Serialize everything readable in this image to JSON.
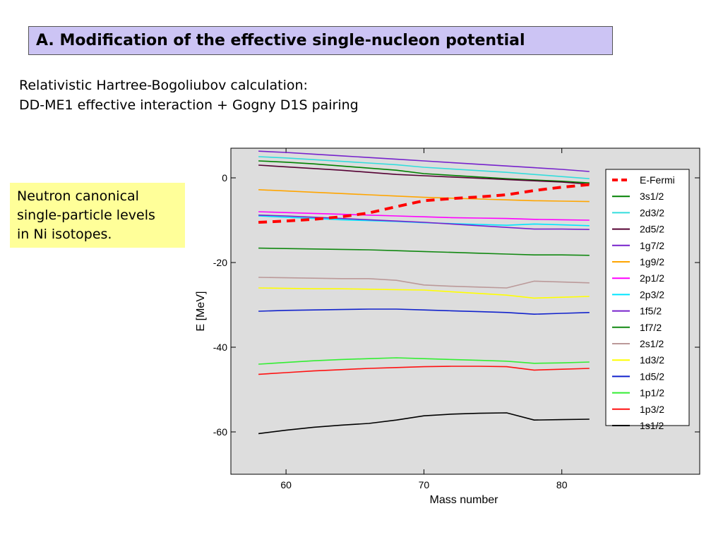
{
  "header": {
    "title": "A. Modification of the effective single-nucleon potential"
  },
  "subtitle": {
    "line1": "Relativistic Hartree-Bogoliubov calculation:",
    "line2": "DD-ME1 effective interaction + Gogny D1S pairing"
  },
  "note": {
    "lines": [
      "Neutron canonical",
      "single-particle levels",
      "in Ni isotopes."
    ]
  },
  "colors": {
    "title_bg": "#ccc4f4",
    "note_bg": "#ffff99",
    "plot_bg": "#dddddd"
  },
  "chart_data": {
    "type": "line",
    "title": "",
    "xlabel": "Mass number",
    "ylabel": "E [MeV]",
    "xlim": [
      56,
      90
    ],
    "ylim": [
      -70,
      7
    ],
    "xticks": [
      60,
      70,
      80
    ],
    "yticks": [
      0,
      -20,
      -40,
      -60
    ],
    "grid": false,
    "legend": "top-right",
    "x": [
      58,
      60,
      62,
      64,
      66,
      68,
      70,
      72,
      74,
      76,
      78,
      80,
      82
    ],
    "series": [
      {
        "name": "E-Fermi",
        "color": "#ff0000",
        "dashed": true,
        "values": [
          -10.5,
          -10.2,
          -9.8,
          -9.2,
          -8.3,
          -6.8,
          -5.4,
          -4.9,
          -4.5,
          -4.0,
          -3.0,
          -2.2,
          -1.6
        ]
      },
      {
        "name": "3s1/2",
        "color": "#008000",
        "values": [
          4.0,
          3.7,
          3.3,
          2.8,
          2.3,
          1.8,
          1.0,
          0.6,
          0.2,
          -0.2,
          -0.5,
          -0.8,
          -1.2
        ]
      },
      {
        "name": "2d3/2",
        "color": "#33dddd",
        "values": [
          5.0,
          4.7,
          4.3,
          3.9,
          3.5,
          3.1,
          2.5,
          2.1,
          1.7,
          1.3,
          0.8,
          0.3,
          -0.2
        ]
      },
      {
        "name": "2d5/2",
        "color": "#550033",
        "values": [
          3.0,
          2.6,
          2.2,
          1.8,
          1.3,
          0.8,
          0.5,
          0.2,
          -0.1,
          -0.4,
          -0.7,
          -1.0,
          -1.5
        ]
      },
      {
        "name": "1g7/2",
        "color": "#7722cc",
        "values": [
          6.3,
          6.0,
          5.6,
          5.2,
          4.8,
          4.4,
          4.0,
          3.6,
          3.2,
          2.8,
          2.4,
          2.0,
          1.5
        ]
      },
      {
        "name": "1g9/2",
        "color": "#ffa500",
        "values": [
          -2.8,
          -3.1,
          -3.4,
          -3.7,
          -4.0,
          -4.3,
          -4.6,
          -4.8,
          -5.0,
          -5.2,
          -5.4,
          -5.5,
          -5.6
        ]
      },
      {
        "name": "2p1/2",
        "color": "#ff00ff",
        "values": [
          -8.0,
          -8.2,
          -8.4,
          -8.6,
          -8.8,
          -9.0,
          -9.2,
          -9.4,
          -9.5,
          -9.6,
          -9.8,
          -9.9,
          -10.0
        ]
      },
      {
        "name": "2p3/2",
        "color": "#00e5ff",
        "values": [
          -9.0,
          -9.3,
          -9.6,
          -9.9,
          -10.1,
          -10.3,
          -10.6,
          -10.8,
          -11.0,
          -11.2,
          -10.9,
          -11.1,
          -11.3
        ]
      },
      {
        "name": "1f5/2",
        "color": "#7722cc",
        "values": [
          -8.8,
          -9.0,
          -9.3,
          -9.6,
          -9.9,
          -10.2,
          -10.5,
          -10.9,
          -11.3,
          -11.7,
          -12.1,
          -12.1,
          -12.2
        ]
      },
      {
        "name": "1f7/2",
        "color": "#118811",
        "values": [
          -16.6,
          -16.7,
          -16.8,
          -16.9,
          -17.0,
          -17.2,
          -17.4,
          -17.6,
          -17.8,
          -18.0,
          -18.2,
          -18.2,
          -18.3
        ]
      },
      {
        "name": "2s1/2",
        "color": "#bb9999",
        "values": [
          -23.5,
          -23.6,
          -23.7,
          -23.8,
          -23.8,
          -24.2,
          -25.3,
          -25.6,
          -25.8,
          -26.0,
          -24.4,
          -24.6,
          -24.8
        ]
      },
      {
        "name": "1d3/2",
        "color": "#ffff00",
        "values": [
          -26.0,
          -26.1,
          -26.2,
          -26.2,
          -26.3,
          -26.4,
          -26.5,
          -26.9,
          -27.3,
          -27.7,
          -28.4,
          -28.2,
          -28.0
        ]
      },
      {
        "name": "1d5/2",
        "color": "#1122cc",
        "values": [
          -31.5,
          -31.3,
          -31.2,
          -31.1,
          -31.0,
          -31.0,
          -31.2,
          -31.4,
          -31.6,
          -31.8,
          -32.2,
          -32.0,
          -31.8
        ]
      },
      {
        "name": "1p1/2",
        "color": "#33ee33",
        "values": [
          -44.0,
          -43.6,
          -43.2,
          -42.9,
          -42.7,
          -42.5,
          -42.7,
          -42.9,
          -43.1,
          -43.3,
          -43.8,
          -43.7,
          -43.5
        ]
      },
      {
        "name": "1p3/2",
        "color": "#ff1111",
        "values": [
          -46.4,
          -46.0,
          -45.6,
          -45.3,
          -45.0,
          -44.8,
          -44.6,
          -44.5,
          -44.5,
          -44.6,
          -45.4,
          -45.2,
          -45.0
        ]
      },
      {
        "name": "1s1/2",
        "color": "#000000",
        "values": [
          -60.4,
          -59.6,
          -58.9,
          -58.4,
          -58.0,
          -57.2,
          -56.2,
          -55.8,
          -55.6,
          -55.5,
          -57.2,
          -57.1,
          -57.0
        ]
      }
    ]
  }
}
